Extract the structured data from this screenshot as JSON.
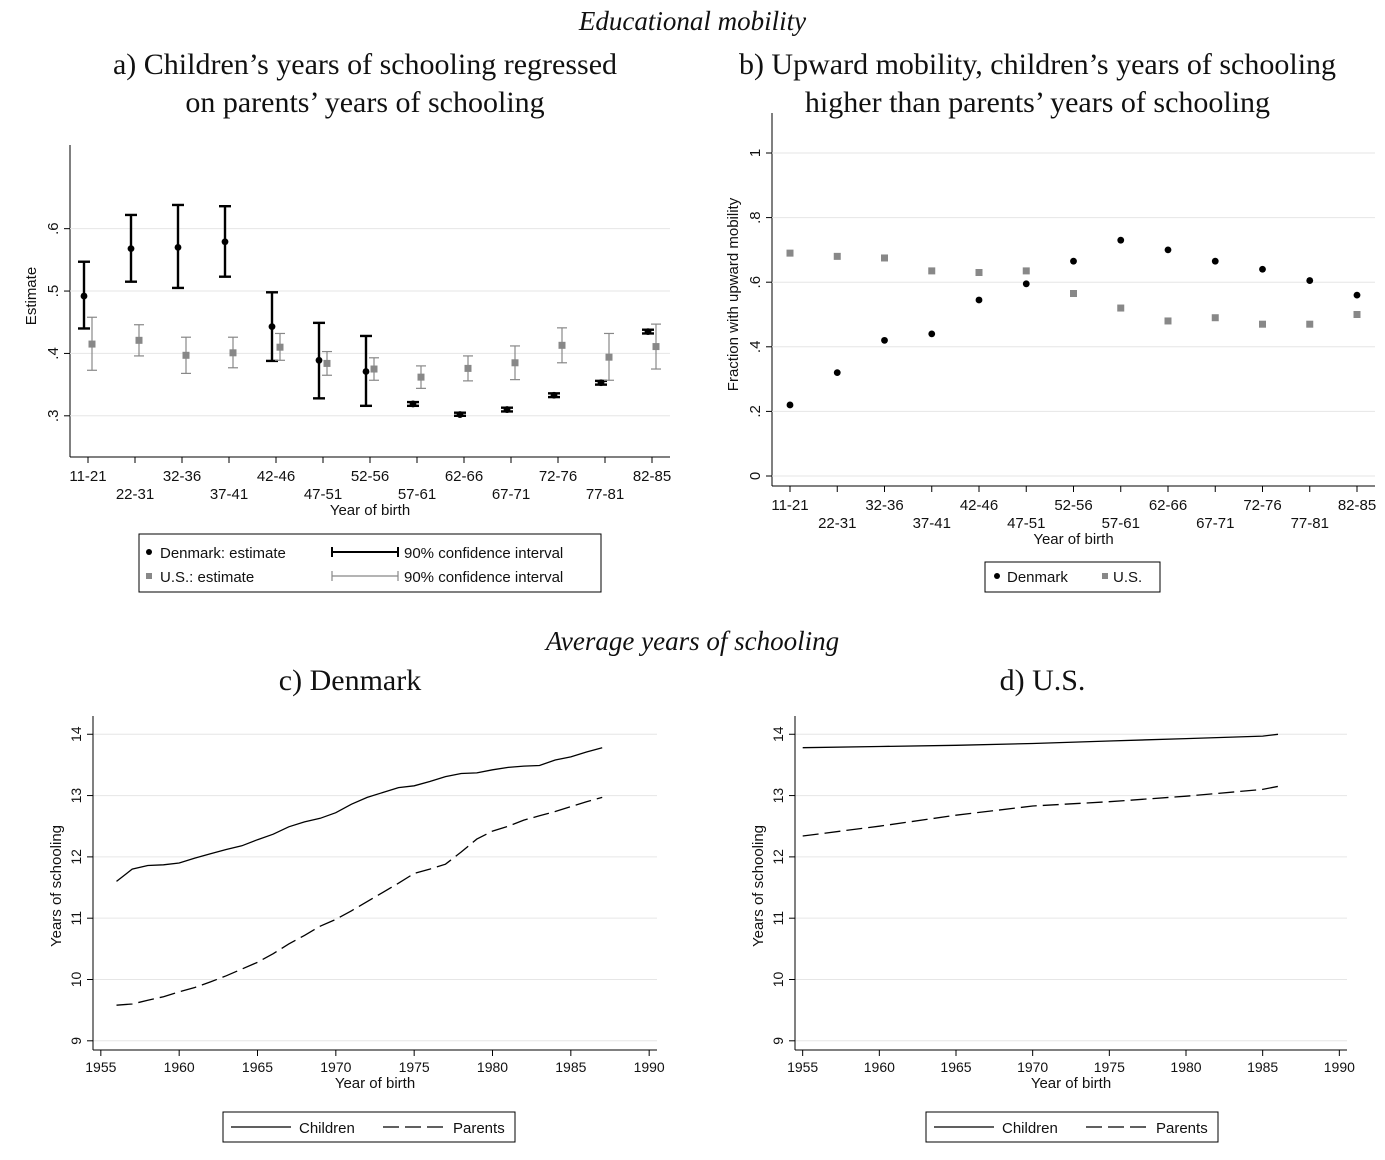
{
  "section_titles": {
    "top": "Educational mobility",
    "bottom": "Average years of schooling"
  },
  "panel_titles": {
    "a_line1": "a) Children’s years of schooling regressed",
    "a_line2": "on parents’ years of schooling",
    "b_line1": "b) Upward mobility, children’s years of schooling",
    "b_line2": "higher than parents’ years of schooling",
    "c": "c) Denmark",
    "d": "d) U.S."
  },
  "chart_data": [
    {
      "id": "a",
      "type": "scatter",
      "subtype": "point-estimate-with-confidence-interval",
      "categories": [
        "11-21",
        "22-31",
        "32-36",
        "37-41",
        "42-46",
        "47-51",
        "52-56",
        "57-61",
        "62-66",
        "67-71",
        "72-76",
        "77-81",
        "82-85"
      ],
      "xlabel": "Year of birth",
      "ylabel": "Estimate",
      "ylim": [
        0.25,
        0.67
      ],
      "yticks": [
        0.3,
        0.4,
        0.5,
        0.6
      ],
      "ytick_labels": [
        ".3",
        ".4",
        ".5",
        ".6"
      ],
      "grid": true,
      "legend_position": "bottom",
      "legend": {
        "dk_estimate": "Denmark: estimate",
        "dk_ci": "90% confidence interval",
        "us_estimate": "U.S.: estimate",
        "us_ci": "90% confidence interval"
      },
      "series": [
        {
          "name": "Denmark",
          "color": "#000000",
          "values": [
            0.492,
            0.568,
            0.57,
            0.579,
            0.443,
            0.389,
            0.371,
            0.319,
            0.302,
            0.31,
            0.333,
            0.353,
            0.435
          ],
          "ci_low": [
            0.44,
            0.515,
            0.505,
            0.523,
            0.388,
            0.328,
            0.316,
            0.316,
            0.3,
            0.307,
            0.33,
            0.35,
            0.432
          ],
          "ci_high": [
            0.547,
            0.622,
            0.638,
            0.636,
            0.498,
            0.449,
            0.428,
            0.322,
            0.305,
            0.313,
            0.336,
            0.356,
            0.438
          ]
        },
        {
          "name": "U.S.",
          "color": "#888888",
          "values": [
            0.415,
            0.421,
            0.397,
            0.401,
            0.41,
            0.384,
            0.375,
            0.362,
            0.376,
            0.385,
            0.413,
            0.394,
            0.411
          ],
          "ci_low": [
            0.373,
            0.396,
            0.368,
            0.377,
            0.389,
            0.365,
            0.357,
            0.344,
            0.356,
            0.358,
            0.385,
            0.357,
            0.375
          ],
          "ci_high": [
            0.458,
            0.446,
            0.426,
            0.426,
            0.432,
            0.403,
            0.393,
            0.38,
            0.396,
            0.412,
            0.441,
            0.432,
            0.447
          ]
        }
      ]
    },
    {
      "id": "b",
      "type": "scatter",
      "categories": [
        "11-21",
        "22-31",
        "32-36",
        "37-41",
        "42-46",
        "47-51",
        "52-56",
        "57-61",
        "62-66",
        "67-71",
        "72-76",
        "77-81",
        "82-85"
      ],
      "xlabel": "Year of birth",
      "ylabel": "Fraction with upward mobility",
      "ylim": [
        0,
        1
      ],
      "yticks": [
        0,
        0.2,
        0.4,
        0.6,
        0.8,
        1
      ],
      "ytick_labels": [
        "0",
        ".2",
        ".4",
        ".6",
        ".8",
        "1"
      ],
      "grid": true,
      "legend_position": "bottom",
      "series": [
        {
          "name": "Denmark",
          "color": "#000000",
          "marker": "circle",
          "values": [
            0.22,
            0.32,
            0.42,
            0.44,
            0.545,
            0.595,
            0.665,
            0.73,
            0.7,
            0.665,
            0.64,
            0.605,
            0.56
          ]
        },
        {
          "name": "U.S.",
          "color": "#888888",
          "marker": "square",
          "values": [
            0.69,
            0.68,
            0.675,
            0.635,
            0.63,
            0.635,
            0.565,
            0.52,
            0.48,
            0.49,
            0.47,
            0.47,
            0.5
          ]
        }
      ]
    },
    {
      "id": "c",
      "type": "line",
      "xlabel": "Year of birth",
      "ylabel": "Years of schooling",
      "xlim": [
        1954.5,
        1990.5
      ],
      "ylim": [
        8.85,
        14.2
      ],
      "xticks": [
        1955,
        1960,
        1965,
        1970,
        1975,
        1980,
        1985,
        1990
      ],
      "yticks": [
        9,
        10,
        11,
        12,
        13,
        14
      ],
      "grid": true,
      "legend_position": "bottom",
      "x": [
        1956,
        1957,
        1958,
        1959,
        1960,
        1961,
        1962,
        1963,
        1964,
        1965,
        1966,
        1967,
        1968,
        1969,
        1970,
        1971,
        1972,
        1973,
        1974,
        1975,
        1976,
        1977,
        1978,
        1979,
        1980,
        1981,
        1982,
        1983,
        1984,
        1985,
        1986,
        1987
      ],
      "series": [
        {
          "name": "Children",
          "dash": "solid",
          "values": [
            11.6,
            11.8,
            11.86,
            11.87,
            11.9,
            11.98,
            12.05,
            12.12,
            12.18,
            12.28,
            12.37,
            12.49,
            12.57,
            12.63,
            12.72,
            12.86,
            12.97,
            13.05,
            13.13,
            13.16,
            13.23,
            13.31,
            13.36,
            13.37,
            13.42,
            13.46,
            13.48,
            13.49,
            13.58,
            13.63,
            13.71,
            13.78
          ]
        },
        {
          "name": "Parents",
          "dash": "dashed",
          "values": [
            9.58,
            9.6,
            9.66,
            9.72,
            9.8,
            9.87,
            9.96,
            10.06,
            10.17,
            10.28,
            10.42,
            10.58,
            10.72,
            10.87,
            10.98,
            11.12,
            11.27,
            11.42,
            11.57,
            11.73,
            11.8,
            11.88,
            12.08,
            12.29,
            12.42,
            12.5,
            12.6,
            12.67,
            12.74,
            12.82,
            12.9,
            12.97
          ]
        }
      ]
    },
    {
      "id": "d",
      "type": "line",
      "xlabel": "Year of birth",
      "ylabel": "Years of schooling",
      "xlim": [
        1954.5,
        1990.5
      ],
      "ylim": [
        8.85,
        14.2
      ],
      "xticks": [
        1955,
        1960,
        1965,
        1970,
        1975,
        1980,
        1985,
        1990
      ],
      "yticks": [
        9,
        10,
        11,
        12,
        13,
        14
      ],
      "grid": true,
      "legend_position": "bottom",
      "x": [
        1955,
        1960,
        1965,
        1970,
        1975,
        1980,
        1985,
        1986
      ],
      "series": [
        {
          "name": "Children",
          "dash": "solid",
          "values": [
            13.78,
            13.8,
            13.82,
            13.85,
            13.89,
            13.93,
            13.97,
            14.0
          ]
        },
        {
          "name": "Parents",
          "dash": "dashed",
          "values": [
            12.34,
            12.5,
            12.68,
            12.83,
            12.9,
            12.99,
            13.1,
            13.15
          ]
        }
      ]
    }
  ]
}
